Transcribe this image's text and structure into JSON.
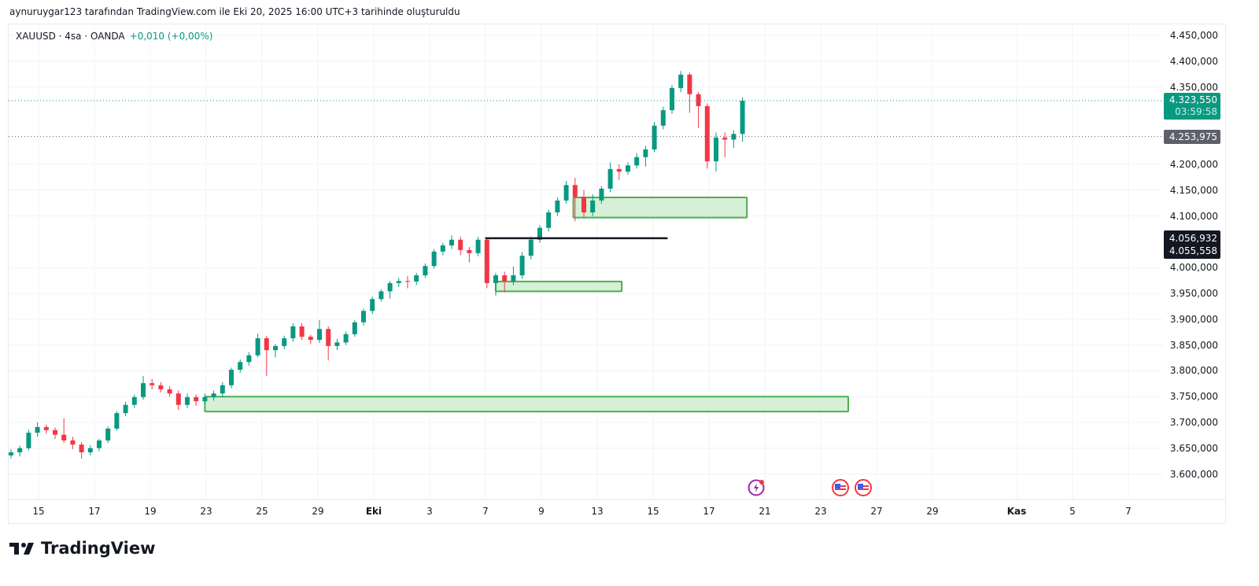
{
  "caption": "aynuruygar123 tarafından TradingView.com ile Eki 20, 2025 16:00 UTC+3 tarihinde oluşturuldu",
  "legend": {
    "symbol": "XAUUSD · 4sa · OANDA",
    "change": "+0,010 (+0,00%)"
  },
  "price_axis": [
    "4.450,000",
    "4.400,000",
    "4.350,000",
    "4.200,000",
    "4.150,000",
    "4.100,000",
    "4.000,000",
    "3.950,000",
    "3.900,000",
    "3.850,000",
    "3.800,000",
    "3.750,000",
    "3.700,000",
    "3.650,000",
    "3.600,000"
  ],
  "tags": {
    "last_price": "4.323,550",
    "countdown": "03:59:58",
    "prev_close": "4.253,975",
    "line_high": "4.056,932",
    "line_low": "4.055,558"
  },
  "time_axis": [
    "15",
    "17",
    "19",
    "23",
    "25",
    "29",
    "Eki",
    "3",
    "7",
    "9",
    "13",
    "15",
    "17",
    "21",
    "23",
    "27",
    "29",
    "Kas",
    "5",
    "7"
  ],
  "brand": "TradingView",
  "colors": {
    "up": "#089981",
    "down": "#f23645",
    "zone_fill": "#d6efd7",
    "zone_border": "#4caf50",
    "grid": "#f0f3fa"
  },
  "chart_data": {
    "type": "candlestick",
    "title": "XAUUSD · 4sa · OANDA",
    "ylim": [
      3570,
      4470
    ],
    "yticks": [
      3600,
      3650,
      3700,
      3750,
      3800,
      3850,
      3900,
      3950,
      4000,
      4050,
      4100,
      4150,
      4200,
      4250,
      4300,
      4350,
      4400,
      4450
    ],
    "candles": [
      [
        3636,
        3648,
        3630,
        3642
      ],
      [
        3642,
        3655,
        3634,
        3650
      ],
      [
        3650,
        3686,
        3646,
        3680
      ],
      [
        3680,
        3700,
        3672,
        3691
      ],
      [
        3691,
        3696,
        3678,
        3685
      ],
      [
        3685,
        3690,
        3668,
        3676
      ],
      [
        3676,
        3708,
        3660,
        3665
      ],
      [
        3665,
        3672,
        3648,
        3657
      ],
      [
        3657,
        3662,
        3630,
        3642
      ],
      [
        3642,
        3656,
        3636,
        3650
      ],
      [
        3650,
        3668,
        3644,
        3665
      ],
      [
        3665,
        3692,
        3660,
        3688
      ],
      [
        3688,
        3722,
        3684,
        3718
      ],
      [
        3718,
        3740,
        3712,
        3734
      ],
      [
        3734,
        3754,
        3728,
        3749
      ],
      [
        3749,
        3790,
        3744,
        3776
      ],
      [
        3776,
        3784,
        3764,
        3772
      ],
      [
        3772,
        3778,
        3758,
        3764
      ],
      [
        3764,
        3770,
        3750,
        3756
      ],
      [
        3756,
        3762,
        3724,
        3734
      ],
      [
        3734,
        3756,
        3728,
        3749
      ],
      [
        3749,
        3754,
        3732,
        3741
      ],
      [
        3741,
        3756,
        3736,
        3749
      ],
      [
        3749,
        3762,
        3742,
        3756
      ],
      [
        3756,
        3778,
        3748,
        3772
      ],
      [
        3772,
        3806,
        3766,
        3802
      ],
      [
        3802,
        3822,
        3796,
        3817
      ],
      [
        3817,
        3836,
        3810,
        3830
      ],
      [
        3830,
        3872,
        3826,
        3863
      ],
      [
        3863,
        3868,
        3790,
        3840
      ],
      [
        3840,
        3852,
        3826,
        3848
      ],
      [
        3848,
        3868,
        3842,
        3863
      ],
      [
        3863,
        3892,
        3856,
        3886
      ],
      [
        3886,
        3892,
        3860,
        3866
      ],
      [
        3866,
        3870,
        3852,
        3860
      ],
      [
        3860,
        3898,
        3854,
        3881
      ],
      [
        3881,
        3886,
        3820,
        3848
      ],
      [
        3848,
        3862,
        3840,
        3855
      ],
      [
        3855,
        3876,
        3850,
        3871
      ],
      [
        3871,
        3898,
        3866,
        3894
      ],
      [
        3894,
        3920,
        3888,
        3916
      ],
      [
        3916,
        3944,
        3910,
        3939
      ],
      [
        3939,
        3958,
        3934,
        3954
      ],
      [
        3954,
        3974,
        3940,
        3970
      ],
      [
        3970,
        3980,
        3962,
        3974
      ],
      [
        3974,
        3984,
        3960,
        3973
      ],
      [
        3973,
        3990,
        3966,
        3985
      ],
      [
        3985,
        4008,
        3980,
        4003
      ],
      [
        4003,
        4036,
        3998,
        4031
      ],
      [
        4031,
        4048,
        4024,
        4043
      ],
      [
        4043,
        4062,
        4036,
        4054
      ],
      [
        4054,
        4060,
        4024,
        4034
      ],
      [
        4034,
        4040,
        4010,
        4028
      ],
      [
        4028,
        4060,
        4022,
        4054
      ],
      [
        4054,
        4058,
        3960,
        3970
      ],
      [
        3970,
        3990,
        3946,
        3985
      ],
      [
        3985,
        3992,
        3952,
        3973
      ],
      [
        3973,
        4002,
        3966,
        3985
      ],
      [
        3985,
        4030,
        3978,
        4023
      ],
      [
        4023,
        4060,
        4016,
        4054
      ],
      [
        4054,
        4082,
        4048,
        4077
      ],
      [
        4077,
        4112,
        4070,
        4107
      ],
      [
        4107,
        4136,
        4100,
        4130
      ],
      [
        4130,
        4168,
        4124,
        4160
      ],
      [
        4160,
        4174,
        4090,
        4137
      ],
      [
        4137,
        4150,
        4098,
        4107
      ],
      [
        4107,
        4142,
        4100,
        4130
      ],
      [
        4130,
        4158,
        4124,
        4153
      ],
      [
        4153,
        4204,
        4146,
        4191
      ],
      [
        4191,
        4200,
        4170,
        4186
      ],
      [
        4186,
        4204,
        4180,
        4198
      ],
      [
        4198,
        4222,
        4192,
        4214
      ],
      [
        4214,
        4236,
        4196,
        4229
      ],
      [
        4229,
        4282,
        4224,
        4275
      ],
      [
        4275,
        4312,
        4268,
        4305
      ],
      [
        4305,
        4354,
        4298,
        4348
      ],
      [
        4348,
        4381,
        4340,
        4374
      ],
      [
        4374,
        4378,
        4300,
        4336
      ],
      [
        4336,
        4340,
        4270,
        4313
      ],
      [
        4313,
        4318,
        4192,
        4206
      ],
      [
        4206,
        4262,
        4186,
        4252
      ],
      [
        4252,
        4262,
        4214,
        4248
      ],
      [
        4248,
        4266,
        4232,
        4259
      ],
      [
        4259,
        4330,
        4244,
        4323.55
      ]
    ],
    "zones": [
      {
        "name": "support-zone-low",
        "from_bar": 22,
        "to_bar": 95,
        "top": 3750,
        "bottom": 3721
      },
      {
        "name": "support-zone-mid",
        "from_bar": 55,
        "to_bar": 69.3,
        "top": 3973,
        "bottom": 3954
      },
      {
        "name": "support-zone-high",
        "from_bar": 63.8,
        "to_bar": 83.5,
        "top": 4136,
        "bottom": 4097
      }
    ],
    "hline": {
      "name": "resistance-line",
      "from_bar": 53.8,
      "to_bar": 74.5,
      "price": 4056.932
    },
    "last_price": 4323.55,
    "prev_close": 4253.975
  }
}
